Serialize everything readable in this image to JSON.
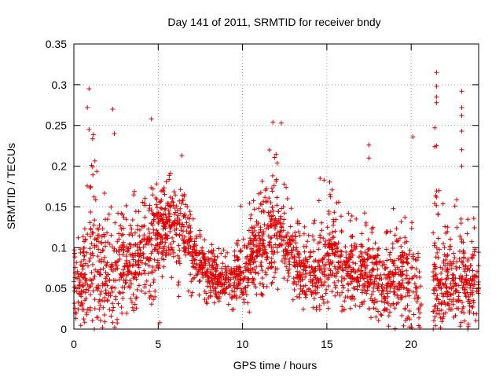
{
  "chart_data": {
    "type": "scatter",
    "title": "Day 141 of 2011, SRMTID for receiver bndy",
    "xlabel": "GPS time / hours",
    "ylabel": "SRMTID / TECUs",
    "xlim": [
      0,
      24
    ],
    "ylim": [
      0,
      0.35
    ],
    "xticks": [
      0,
      5,
      10,
      15,
      20
    ],
    "xtick_labels": [
      "0",
      "5",
      "10",
      "15",
      "20"
    ],
    "yticks": [
      0,
      0.05,
      0.1,
      0.15,
      0.2,
      0.25,
      0.3,
      0.35
    ],
    "ytick_labels": [
      "0",
      "0.05",
      "0.1",
      "0.15",
      "0.2",
      "0.25",
      "0.3",
      "0.35"
    ],
    "grid": true,
    "marker": "+",
    "marker_color": "#e00000",
    "series": [
      {
        "name": "SRMTID",
        "note": "approximate envelope of the dense scatter, sampled every 0.5 h",
        "x": [
          0.5,
          1.0,
          1.5,
          2.0,
          2.5,
          3.0,
          3.5,
          4.0,
          4.5,
          5.0,
          5.5,
          6.0,
          6.5,
          7.0,
          7.5,
          8.0,
          8.5,
          9.0,
          9.5,
          10.0,
          10.5,
          11.0,
          11.5,
          12.0,
          12.5,
          13.0,
          13.5,
          14.0,
          14.5,
          15.0,
          15.5,
          16.0,
          16.5,
          17.0,
          17.5,
          18.0,
          18.5,
          19.0,
          19.5,
          20.0,
          20.5,
          21.5,
          22.0,
          22.5,
          23.0,
          23.5
        ],
        "y": [
          0.06,
          0.08,
          0.07,
          0.06,
          0.07,
          0.08,
          0.08,
          0.09,
          0.11,
          0.12,
          0.13,
          0.13,
          0.12,
          0.1,
          0.08,
          0.07,
          0.06,
          0.06,
          0.06,
          0.07,
          0.09,
          0.1,
          0.11,
          0.12,
          0.11,
          0.09,
          0.07,
          0.06,
          0.07,
          0.09,
          0.09,
          0.08,
          0.07,
          0.07,
          0.07,
          0.06,
          0.06,
          0.07,
          0.06,
          0.06,
          0.05,
          0.05,
          0.05,
          0.06,
          0.06,
          0.05
        ],
        "spread_low": [
          0.0,
          0.0,
          0.0,
          0.0,
          0.0,
          0.0,
          0.0,
          0.0,
          0.02,
          0.04,
          0.04,
          0.04,
          0.04,
          0.04,
          0.03,
          0.03,
          0.03,
          0.03,
          0.02,
          0.02,
          0.03,
          0.04,
          0.04,
          0.05,
          0.04,
          0.03,
          0.02,
          0.02,
          0.02,
          0.03,
          0.03,
          0.02,
          0.02,
          0.02,
          0.01,
          0.0,
          0.0,
          0.0,
          0.0,
          0.0,
          0.0,
          0.0,
          0.0,
          0.0,
          0.0,
          0.0
        ],
        "spread_high": [
          0.12,
          0.25,
          0.22,
          0.15,
          0.18,
          0.16,
          0.17,
          0.17,
          0.18,
          0.18,
          0.19,
          0.2,
          0.17,
          0.14,
          0.12,
          0.11,
          0.1,
          0.1,
          0.1,
          0.13,
          0.17,
          0.19,
          0.22,
          0.22,
          0.19,
          0.15,
          0.13,
          0.12,
          0.16,
          0.2,
          0.16,
          0.16,
          0.14,
          0.15,
          0.14,
          0.13,
          0.14,
          0.15,
          0.13,
          0.18,
          0.14,
          0.18,
          0.16,
          0.16,
          0.16,
          0.14
        ]
      }
    ],
    "notable_points": [
      {
        "x": 0.9,
        "y": 0.295
      },
      {
        "x": 0.8,
        "y": 0.272
      },
      {
        "x": 2.3,
        "y": 0.27
      },
      {
        "x": 4.6,
        "y": 0.258
      },
      {
        "x": 11.8,
        "y": 0.254
      },
      {
        "x": 12.3,
        "y": 0.253
      },
      {
        "x": 21.5,
        "y": 0.315
      },
      {
        "x": 21.5,
        "y": 0.298
      },
      {
        "x": 21.5,
        "y": 0.285
      },
      {
        "x": 21.5,
        "y": 0.278
      },
      {
        "x": 23.0,
        "y": 0.292
      },
      {
        "x": 23.0,
        "y": 0.272
      },
      {
        "x": 23.0,
        "y": 0.262
      },
      {
        "x": 21.4,
        "y": 0.247
      },
      {
        "x": 23.0,
        "y": 0.243
      },
      {
        "x": 21.5,
        "y": 0.225
      },
      {
        "x": 21.4,
        "y": 0.224
      },
      {
        "x": 17.5,
        "y": 0.226
      },
      {
        "x": 17.5,
        "y": 0.21
      },
      {
        "x": 20.1,
        "y": 0.236
      },
      {
        "x": 23.0,
        "y": 0.22
      },
      {
        "x": 23.0,
        "y": 0.2
      },
      {
        "x": 2.4,
        "y": 0.24
      },
      {
        "x": 0.9,
        "y": 0.245
      },
      {
        "x": 6.4,
        "y": 0.213
      },
      {
        "x": 14.6,
        "y": 0.185
      },
      {
        "x": 21.5,
        "y": 0.162
      },
      {
        "x": 9.9,
        "y": 0.151
      },
      {
        "x": 5.1,
        "y": 0.008
      },
      {
        "x": 10.4,
        "y": 0.021
      }
    ]
  }
}
